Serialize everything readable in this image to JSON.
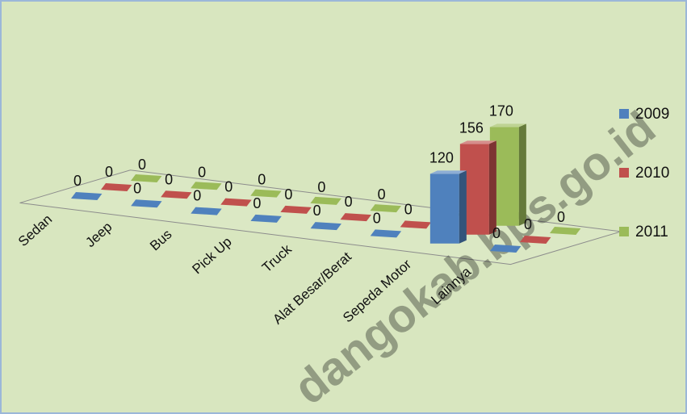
{
  "chart_data": {
    "type": "bar",
    "categories": [
      "Sedan",
      "Jeep",
      "Bus",
      "Pick Up",
      "Truck",
      "Alat Besar/Berat",
      "Sepeda Motor",
      "Lainnya"
    ],
    "series": [
      {
        "name": "2009",
        "values": [
          0,
          0,
          0,
          0,
          0,
          0,
          120,
          0
        ]
      },
      {
        "name": "2010",
        "values": [
          0,
          0,
          0,
          0,
          0,
          0,
          156,
          0
        ]
      },
      {
        "name": "2011",
        "values": [
          0,
          0,
          0,
          0,
          0,
          0,
          170,
          0
        ]
      }
    ],
    "legend_position": "right",
    "colors": {
      "2009": "#4f81bd",
      "2010": "#c0504d",
      "2011": "#9bbb59"
    },
    "title": "",
    "xlabel": "",
    "ylabel": "",
    "watermark": "dangokab.bps.go.id"
  }
}
